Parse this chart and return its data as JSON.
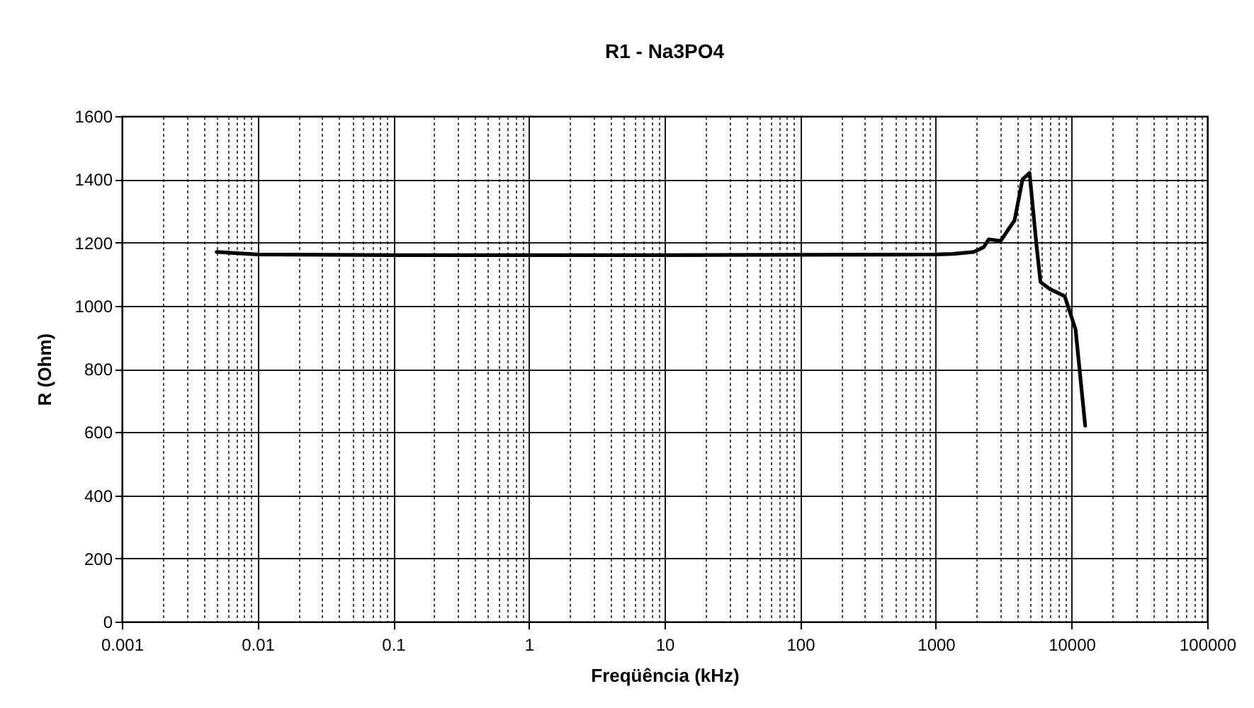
{
  "chart_data": {
    "type": "line",
    "title": "R1 - Na3PO4",
    "xlabel": "Freqüência (kHz)",
    "ylabel": "R (Ohm)",
    "log": "x",
    "grid": true,
    "legend": false,
    "marker": "none",
    "line_style": "solid",
    "xlim": [
      0.001,
      100000
    ],
    "ylim": [
      0,
      1600
    ],
    "xticks": [
      0.001,
      {
        "value": 0.002,
        "label": null
      },
      {
        "value": 0.003,
        "label": null
      },
      {
        "value": 0.004,
        "label": null
      },
      {
        "value": 0.005,
        "label": null
      },
      {
        "value": 0.006,
        "label": null
      },
      {
        "value": 0.007,
        "label": null
      },
      {
        "value": 0.008,
        "label": null
      },
      {
        "value": 0.009,
        "label": null
      },
      0.01,
      {
        "value": 0.02,
        "label": null
      },
      {
        "value": 0.03,
        "label": null
      },
      {
        "value": 0.04,
        "label": null
      },
      {
        "value": 0.05,
        "label": null
      },
      {
        "value": 0.06,
        "label": null
      },
      {
        "value": 0.07,
        "label": null
      },
      {
        "value": 0.08,
        "label": null
      },
      {
        "value": 0.09,
        "label": null
      },
      0.1,
      {
        "value": 0.2,
        "label": null
      },
      {
        "value": 0.3,
        "label": null
      },
      {
        "value": 0.4,
        "label": null
      },
      {
        "value": 0.5,
        "label": null
      },
      {
        "value": 0.6,
        "label": null
      },
      {
        "value": 0.7,
        "label": null
      },
      {
        "value": 0.8,
        "label": null
      },
      {
        "value": 0.9,
        "label": null
      },
      1,
      {
        "value": 2,
        "label": null
      },
      {
        "value": 3,
        "label": null
      },
      {
        "value": 4,
        "label": null
      },
      {
        "value": 5,
        "label": null
      },
      {
        "value": 6,
        "label": null
      },
      {
        "value": 7,
        "label": null
      },
      {
        "value": 8,
        "label": null
      },
      {
        "value": 9,
        "label": null
      },
      10,
      {
        "value": 20,
        "label": null
      },
      {
        "value": 30,
        "label": null
      },
      {
        "value": 40,
        "label": null
      },
      {
        "value": 50,
        "label": null
      },
      {
        "value": 60,
        "label": null
      },
      {
        "value": 70,
        "label": null
      },
      {
        "value": 80,
        "label": null
      },
      {
        "value": 90,
        "label": null
      },
      100,
      {
        "value": 200,
        "label": null
      },
      {
        "value": 300,
        "label": null
      },
      {
        "value": 400,
        "label": null
      },
      {
        "value": 500,
        "label": null
      },
      {
        "value": 600,
        "label": null
      },
      {
        "value": 700,
        "label": null
      },
      {
        "value": 800,
        "label": null
      },
      {
        "value": 900,
        "label": null
      },
      1000,
      {
        "value": 2000,
        "label": null
      },
      {
        "value": 3000,
        "label": null
      },
      {
        "value": 4000,
        "label": null
      },
      {
        "value": 5000,
        "label": null
      },
      {
        "value": 6000,
        "label": null
      },
      {
        "value": 7000,
        "label": null
      },
      {
        "value": 8000,
        "label": null
      },
      {
        "value": 9000,
        "label": null
      },
      10000,
      {
        "value": 20000,
        "label": null
      },
      {
        "value": 30000,
        "label": null
      },
      {
        "value": 40000,
        "label": null
      },
      {
        "value": 50000,
        "label": null
      },
      {
        "value": 60000,
        "label": null
      },
      {
        "value": 70000,
        "label": null
      },
      {
        "value": 80000,
        "label": null
      },
      {
        "value": 90000,
        "label": null
      },
      100000
    ],
    "yticks": [
      0,
      200,
      400,
      600,
      800,
      1000,
      1200,
      1400,
      1600
    ],
    "x": [
      0.005,
      0.01,
      0.1,
      1,
      10,
      100,
      1000,
      1334,
      1900,
      2250,
      2450,
      3000,
      3800,
      4350,
      4900,
      5500,
      5900,
      6900,
      8900,
      10700,
      12600
    ],
    "series": [
      {
        "color": "#000000",
        "values": [
          1170,
          1162,
          1160,
          1160,
          1160,
          1161,
          1162,
          1164,
          1170,
          1185,
          1210,
          1205,
          1270,
          1400,
          1420,
          1196,
          1075,
          1053,
          1030,
          925,
          620
        ]
      }
    ]
  }
}
